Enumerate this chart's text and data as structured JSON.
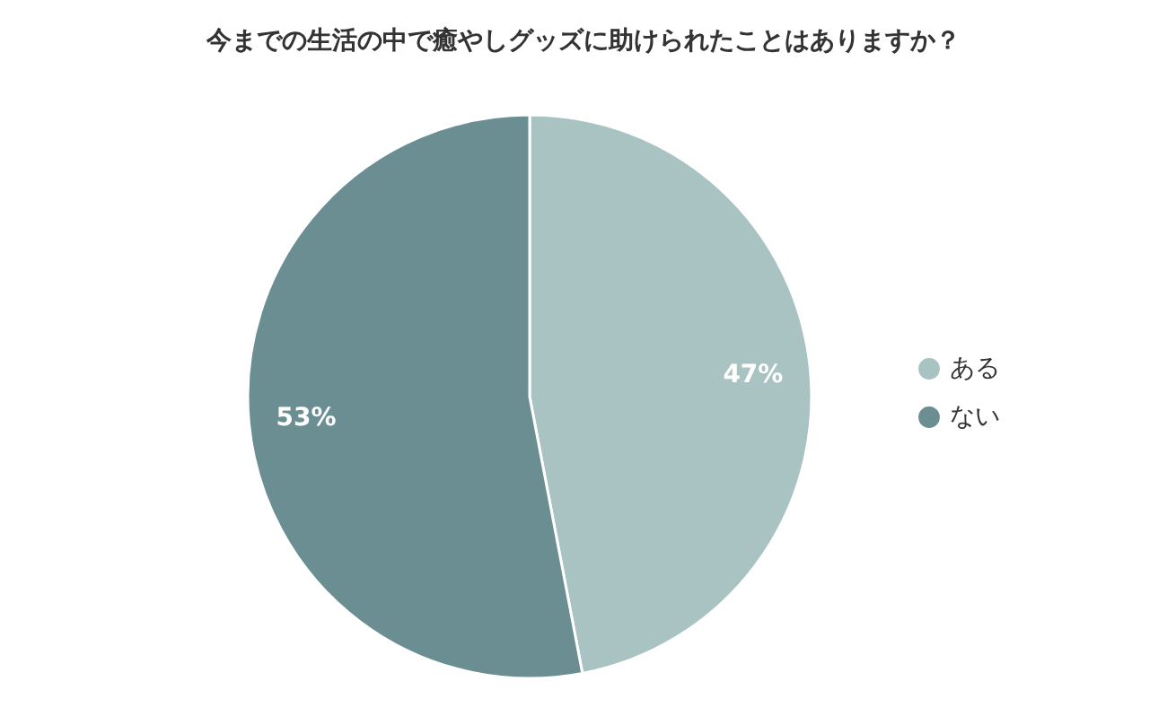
{
  "chart_data": {
    "type": "pie",
    "title": "今までの生活の中で癒やしグッズに助けられたことはありますか？",
    "categories": [
      "ある",
      "ない"
    ],
    "values": [
      47,
      53
    ],
    "colors": [
      "#a9c2c2",
      "#6b8e92"
    ],
    "value_labels": [
      "47%",
      "53%"
    ],
    "legend": "right"
  }
}
